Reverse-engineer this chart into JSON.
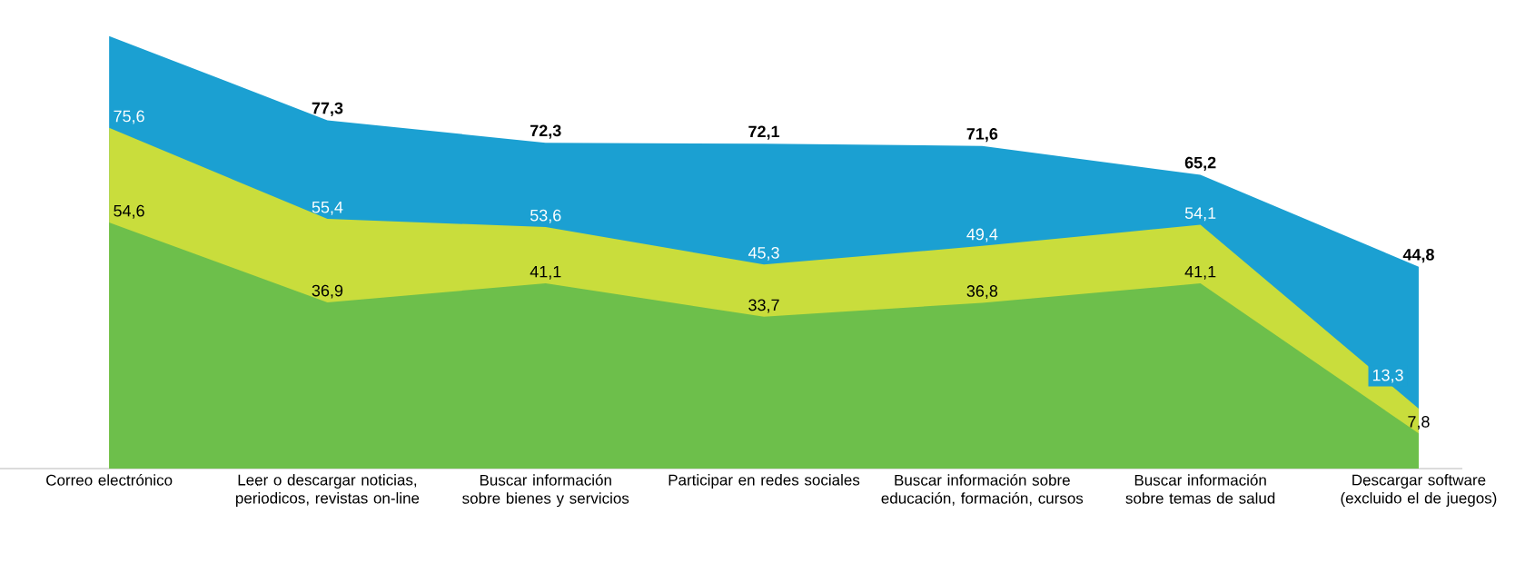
{
  "chart_data": {
    "type": "area",
    "categories": [
      "Correo electrónico",
      "Leer o descargar noticias, periodicos, revistas on-line",
      "Buscar información sobre bienes y servicios",
      "Participar en redes sociales",
      "Buscar información sobre educación, formación, cursos",
      "Buscar información sobre temas de salud",
      "Descargar software (excluido el de juegos)"
    ],
    "series": [
      {
        "color": "#1ba0d2",
        "values": [
          96,
          77.3,
          72.3,
          72.1,
          71.6,
          65.2,
          44.8
        ],
        "value_labels": [
          null,
          "77,3",
          "72,3",
          "72,1",
          "71,6",
          "65,2",
          "44,8"
        ]
      },
      {
        "color": "#c9dd3c",
        "values": [
          75.6,
          55.4,
          53.6,
          45.3,
          49.4,
          54.1,
          13.3
        ],
        "value_labels": [
          "75,6",
          "55,4",
          "53,6",
          "45,3",
          "49,4",
          "54,1",
          "13,3"
        ]
      },
      {
        "color": "#6dbf4b",
        "values": [
          54.6,
          36.9,
          41.1,
          33.7,
          36.8,
          41.1,
          7.8
        ],
        "value_labels": [
          "54,6",
          "36,9",
          "41,1",
          "33,7",
          "36,8",
          "41,1",
          "7,8"
        ]
      }
    ],
    "relative": false
  }
}
